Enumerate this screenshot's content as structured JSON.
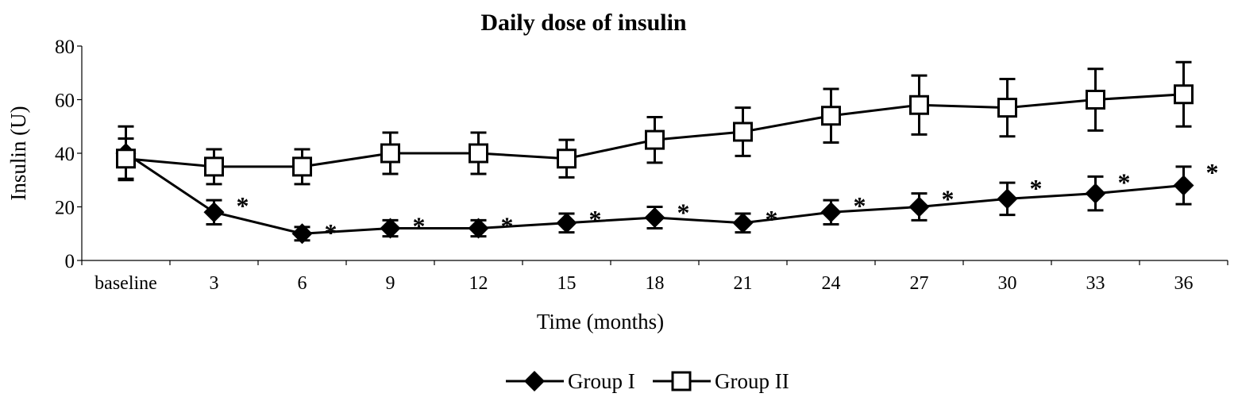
{
  "chart_data": {
    "type": "line",
    "title": "Daily dose of insulin",
    "xlabel": "Time (months)",
    "ylabel": "Insulin (U)",
    "categories": [
      "baseline",
      "3",
      "6",
      "9",
      "12",
      "15",
      "18",
      "21",
      "24",
      "27",
      "30",
      "33",
      "36"
    ],
    "ylim": [
      0,
      80
    ],
    "yticks": [
      0,
      20,
      40,
      60,
      80
    ],
    "grid": false,
    "legend_position": "bottom",
    "series": [
      {
        "name": "Group I",
        "marker": "diamond-filled",
        "values": [
          40,
          18,
          10,
          12,
          12,
          14,
          16,
          14,
          18,
          20,
          23,
          25,
          28
        ],
        "errors": [
          10,
          4.5,
          2.5,
          3,
          3,
          3.5,
          4,
          3.5,
          4.5,
          5,
          6,
          6.3,
          7
        ],
        "significance_marker": "*",
        "significant": [
          false,
          true,
          true,
          true,
          true,
          true,
          true,
          true,
          true,
          true,
          true,
          true,
          true
        ]
      },
      {
        "name": "Group II",
        "marker": "square-open",
        "values": [
          38,
          35,
          35,
          40,
          40,
          38,
          45,
          48,
          54,
          58,
          57,
          60,
          62
        ],
        "errors": [
          7.5,
          6.5,
          6.5,
          7.7,
          7.7,
          7,
          8.5,
          9,
          10,
          11,
          10.7,
          11.5,
          12
        ]
      }
    ],
    "colors": {
      "line": "#000000",
      "background": "#ffffff"
    }
  }
}
